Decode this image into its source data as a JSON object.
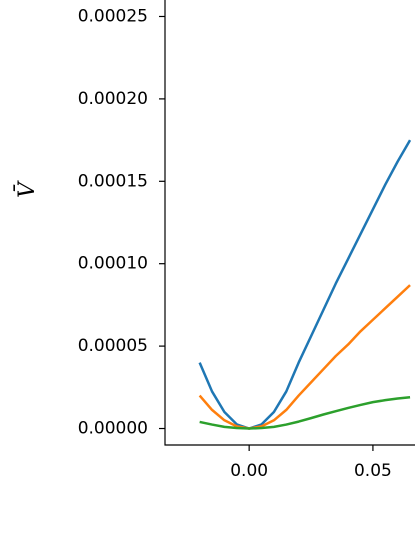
{
  "chart_data": {
    "type": "line",
    "ylabel": "V̄",
    "x": [
      -0.02,
      -0.015,
      -0.01,
      -0.005,
      0,
      0.005,
      0.01,
      0.015,
      0.02,
      0.025,
      0.03,
      0.035,
      0.04,
      0.045,
      0.05,
      0.055,
      0.06,
      0.065
    ],
    "series": [
      {
        "color": "#1f77b4",
        "values": [
          4e-05,
          2.25e-05,
          1e-05,
          2.5e-06,
          0,
          2.5e-06,
          1e-05,
          2.25e-05,
          4e-05,
          5.6e-05,
          7.2e-05,
          8.8e-05,
          0.000103,
          0.000118,
          0.000133,
          0.000148,
          0.000162,
          0.000175
        ]
      },
      {
        "color": "#ff7f0e",
        "values": [
          2e-05,
          1.13e-05,
          5e-06,
          1.3e-06,
          0,
          1.3e-06,
          5e-06,
          1.13e-05,
          2e-05,
          2.8e-05,
          3.6e-05,
          4.4e-05,
          5.1e-05,
          5.9e-05,
          6.6e-05,
          7.3e-05,
          8e-05,
          8.7e-05
        ]
      },
      {
        "color": "#2ca02c",
        "values": [
          4e-06,
          2.4e-06,
          1e-06,
          3e-07,
          0,
          3e-07,
          1e-06,
          2.4e-06,
          4.2e-06,
          6.3e-06,
          8.5e-06,
          1.05e-05,
          1.25e-05,
          1.43e-05,
          1.6e-05,
          1.72e-05,
          1.82e-05,
          1.9e-05
        ]
      }
    ],
    "xlim": [
      -0.034,
      0.067
    ],
    "ylim": [
      -1e-05,
      0.00026
    ],
    "xticks": [
      {
        "value": 0,
        "label": "0.00"
      },
      {
        "value": 0.05,
        "label": "0.05"
      }
    ],
    "yticks": [
      {
        "value": 0,
        "label": "0.00000"
      },
      {
        "value": 5e-05,
        "label": "0.00005"
      },
      {
        "value": 0.0001,
        "label": "0.00010"
      },
      {
        "value": 0.00015,
        "label": "0.00015"
      },
      {
        "value": 0.0002,
        "label": "0.00020"
      },
      {
        "value": 0.00025,
        "label": "0.00025"
      }
    ],
    "line_width": 2.5
  }
}
